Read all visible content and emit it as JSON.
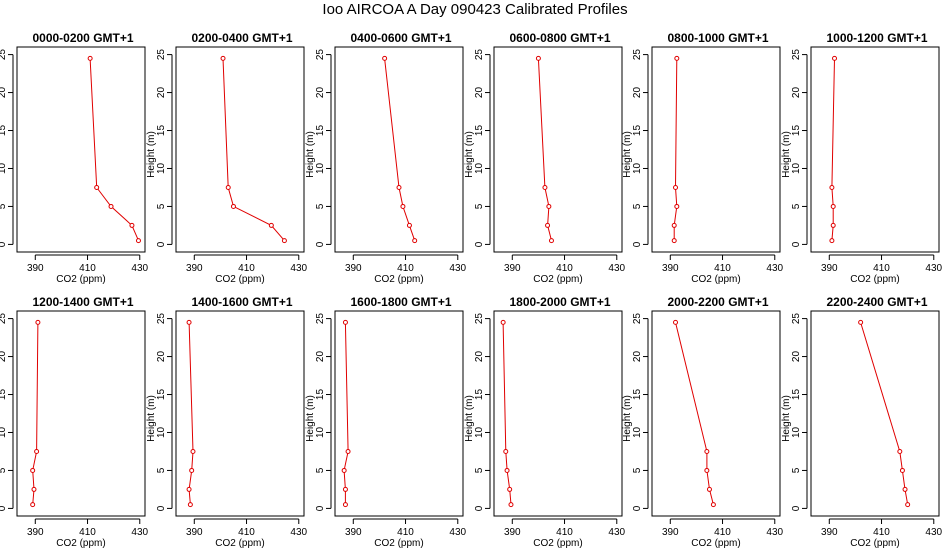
{
  "title": "Ioo AIRCOA A  Day 090423  Calibrated Profiles",
  "colors": {
    "series": "#e00000",
    "axis": "#000000"
  },
  "chart_data": {
    "type": "line",
    "layout": "grid 2x6 small multiples",
    "xlabel": "CO2 (ppm)",
    "ylabel": "Height (m)",
    "xlim": [
      383,
      432
    ],
    "ylim": [
      -1,
      26
    ],
    "xticks": [
      390,
      410,
      430
    ],
    "yticks": [
      0,
      5,
      10,
      15,
      20,
      25
    ],
    "heights": [
      0.5,
      2.5,
      5,
      7.5,
      24.5
    ],
    "panels": [
      {
        "title": "0000-0200 GMT+1",
        "co2": [
          429.5,
          427,
          419,
          413.5,
          411
        ]
      },
      {
        "title": "0200-0400 GMT+1",
        "co2": [
          424.5,
          419.5,
          405,
          403,
          401
        ]
      },
      {
        "title": "0400-0600 GMT+1",
        "co2": [
          413.5,
          411.5,
          409,
          407.5,
          402
        ]
      },
      {
        "title": "0600-0800 GMT+1",
        "co2": [
          405,
          403.5,
          404,
          402.5,
          400
        ]
      },
      {
        "title": "0800-1000 GMT+1",
        "co2": [
          391.5,
          391.5,
          392.5,
          392,
          392.5
        ]
      },
      {
        "title": "1000-1200 GMT+1",
        "co2": [
          391,
          391.5,
          391.5,
          391,
          392
        ]
      },
      {
        "title": "1200-1400 GMT+1",
        "co2": [
          389,
          389.5,
          389,
          390.5,
          391
        ]
      },
      {
        "title": "1400-1600 GMT+1",
        "co2": [
          388.5,
          388,
          389,
          389.5,
          388
        ]
      },
      {
        "title": "1600-1800 GMT+1",
        "co2": [
          387,
          387,
          386.5,
          388,
          387
        ]
      },
      {
        "title": "1800-2000 GMT+1",
        "co2": [
          389.5,
          389,
          388,
          387.5,
          386.5
        ]
      },
      {
        "title": "2000-2200 GMT+1",
        "co2": [
          406.5,
          405,
          404,
          404,
          392
        ]
      },
      {
        "title": "2200-2400 GMT+1",
        "co2": [
          420,
          419,
          418,
          417,
          402
        ]
      }
    ]
  }
}
